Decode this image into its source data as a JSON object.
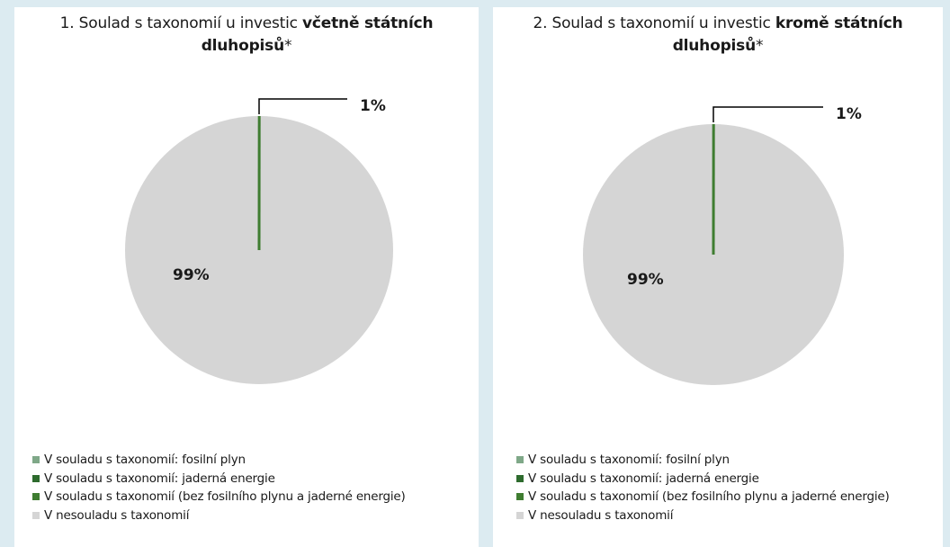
{
  "colors": {
    "background": "#dcebf1",
    "fossil_gas": "#7fa888",
    "nuclear": "#2e6b2e",
    "aligned_other": "#3f7d31",
    "not_aligned": "#d5d5d5"
  },
  "chart_data": [
    {
      "type": "pie",
      "title_prefix": "1. Soulad s taxonomií u investic ",
      "title_emph": "včetně státních dluhopisů",
      "title_suffix": "*",
      "slices": [
        {
          "label": "V souladu s taxonomií: fosilní plyn",
          "value": 0
        },
        {
          "label": "V souladu s taxonomií: jaderná energie",
          "value": 0
        },
        {
          "label": "V souladu s taxonomií (bez fosilního plynu a jaderné energie)",
          "value": 1,
          "data_label": "1%"
        },
        {
          "label": "V nesouladu s taxonomií",
          "value": 99,
          "data_label": "99%"
        }
      ],
      "legend": [
        "V souladu s taxonomií: fosilní plyn",
        "V souladu s taxonomií: jaderná energie",
        "V souladu s taxonomií (bez fosilního plynu a jaderné energie)",
        "V nesouladu s taxonomií"
      ],
      "legend_position": "bottom-left"
    },
    {
      "type": "pie",
      "title_prefix": "2. Soulad s taxonomií u investic ",
      "title_emph": "kromě státních dluhopisů",
      "title_suffix": "*",
      "slices": [
        {
          "label": "V souladu s taxonomií: fosilní plyn",
          "value": 0
        },
        {
          "label": "V souladu s taxonomií: jaderná energie",
          "value": 0
        },
        {
          "label": "V souladu s taxonomií (bez fosilního plynu a jaderné energie)",
          "value": 1,
          "data_label": "1%"
        },
        {
          "label": "V nesouladu s taxonomií",
          "value": 99,
          "data_label": "99%"
        }
      ],
      "legend": [
        "V souladu s taxonomií: fosilní plyn",
        "V souladu s taxonomií: jaderná energie",
        "V souladu s taxonomií (bez fosilního plynu a jaderné energie)",
        "V nesouladu s taxonomií"
      ],
      "legend_position": "bottom-left"
    }
  ]
}
